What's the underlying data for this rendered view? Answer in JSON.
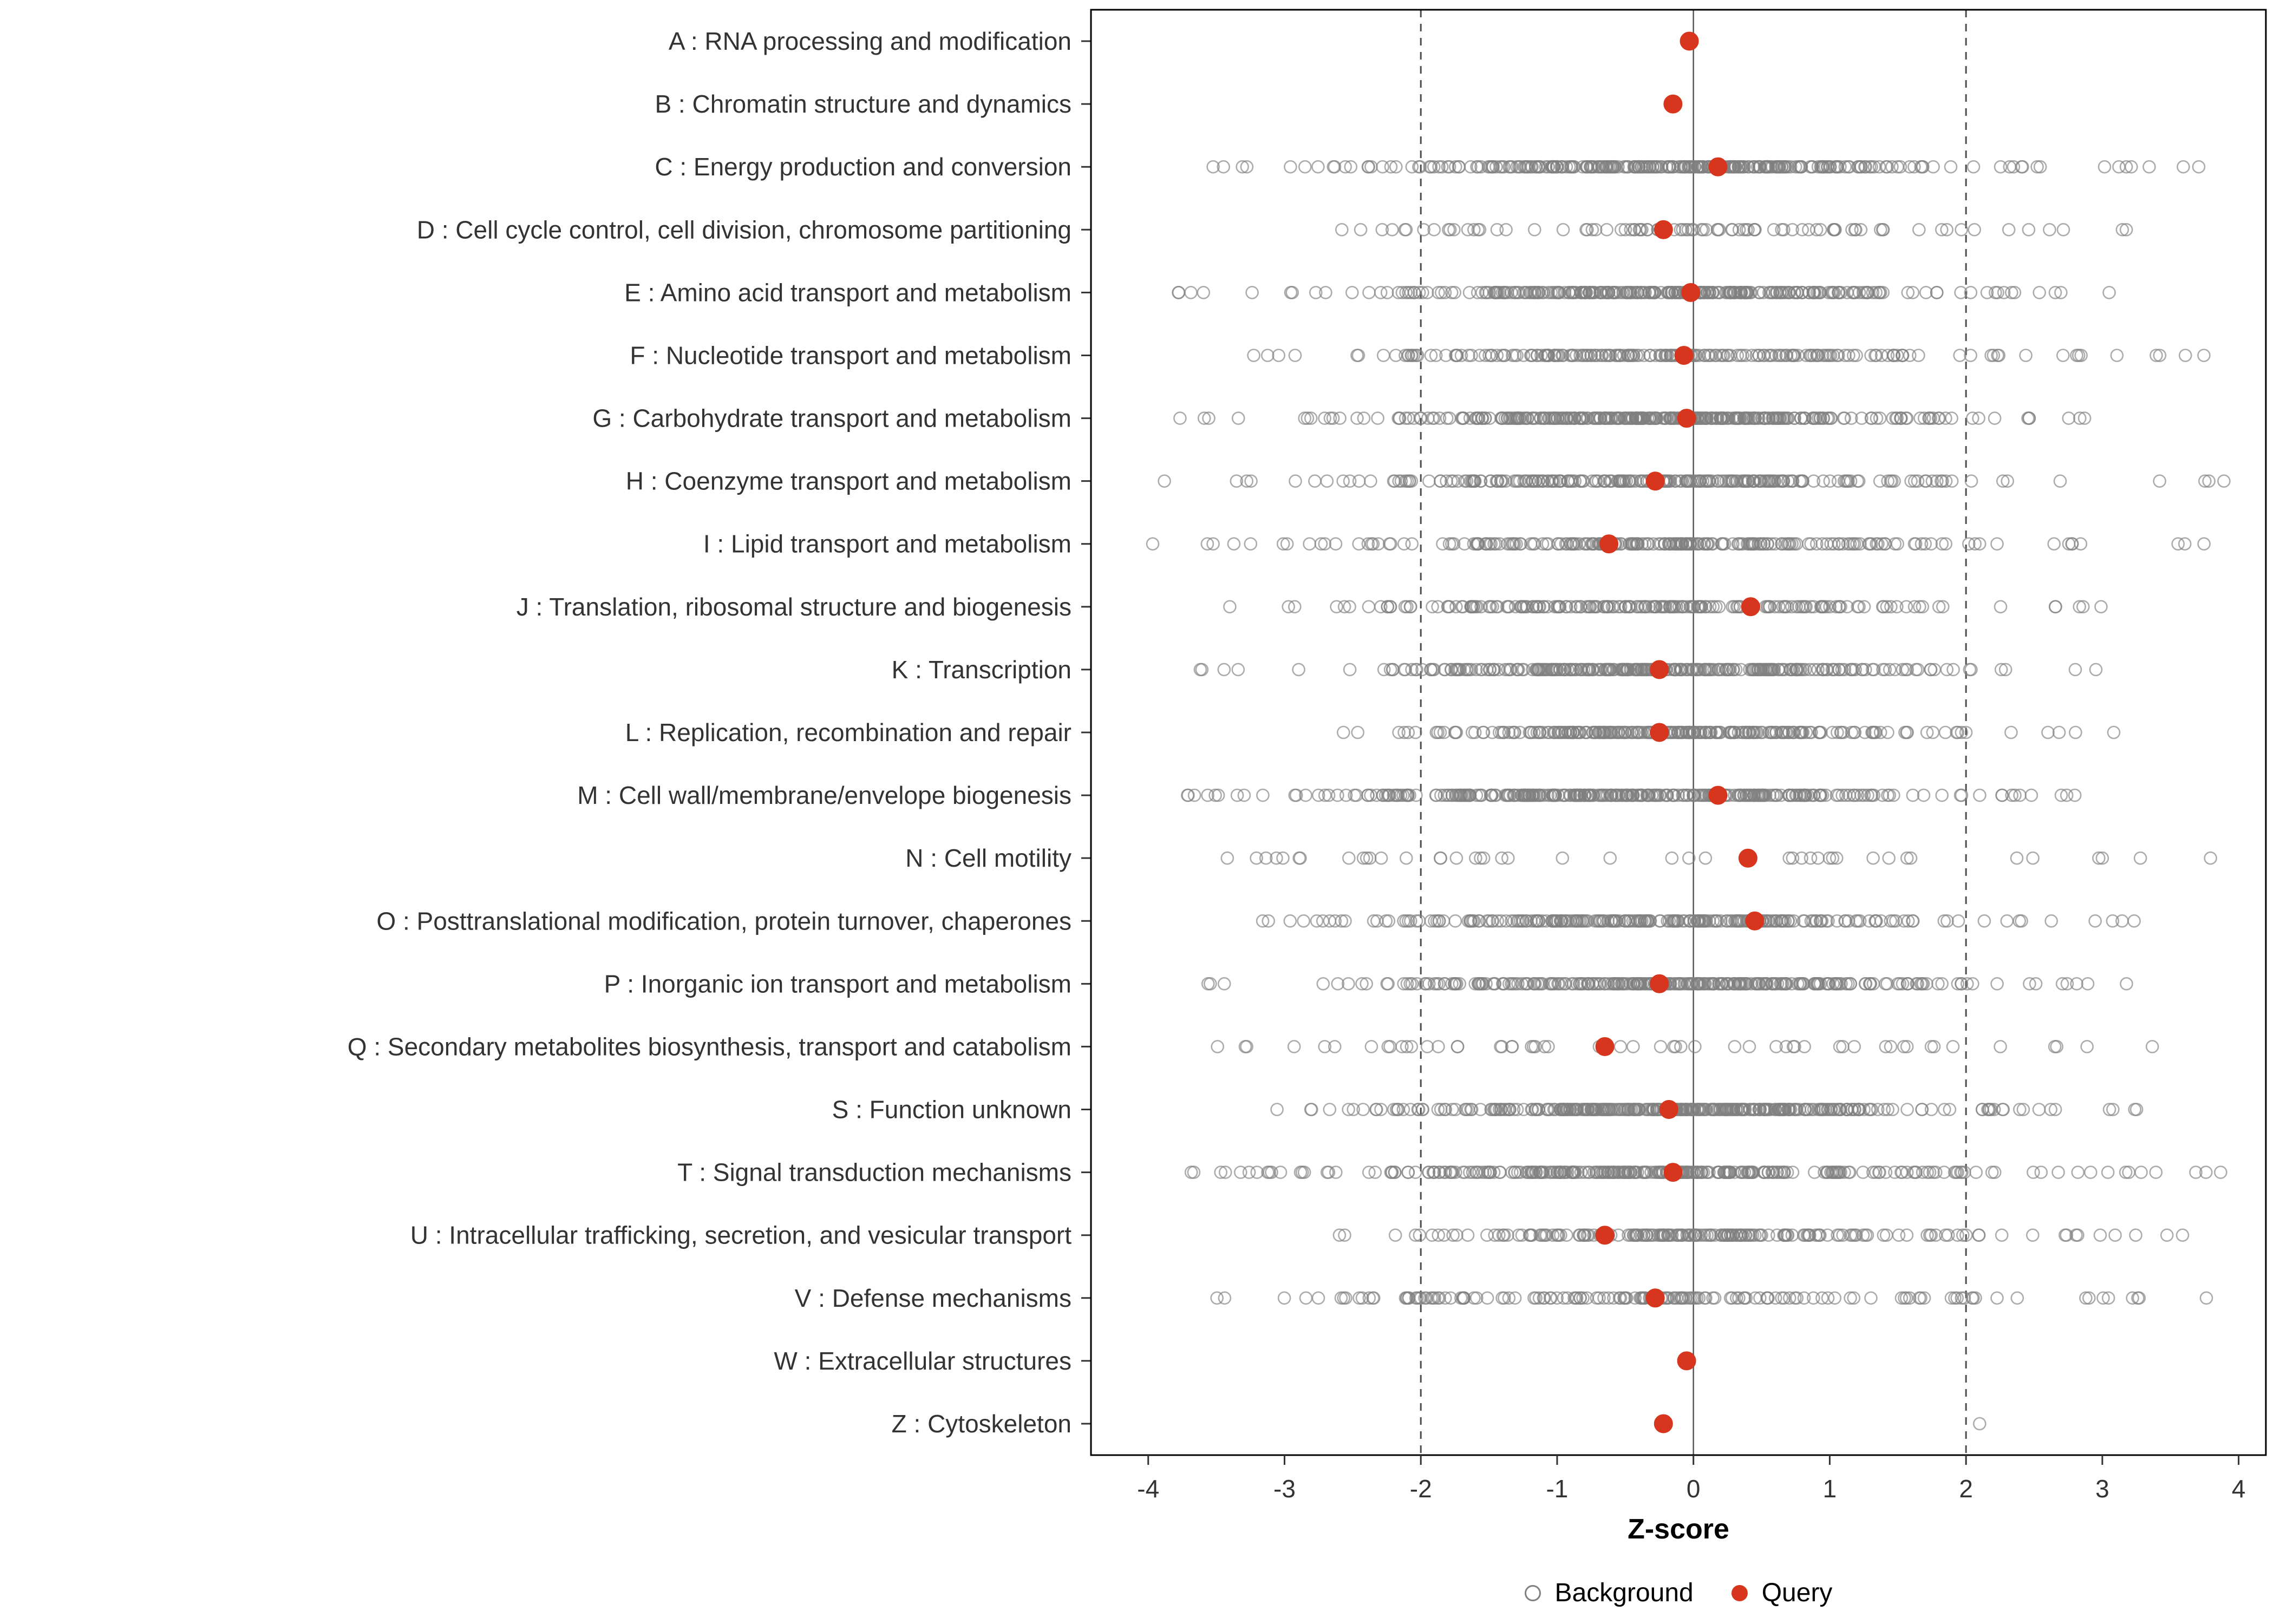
{
  "chart_data": {
    "type": "scatter",
    "title": "",
    "xlabel": "Z-score",
    "ylabel": "",
    "xlim": [
      -4.42,
      4.2
    ],
    "x_ticks": [
      -4,
      -3,
      -2,
      -1,
      0,
      1,
      2,
      3,
      4
    ],
    "reference_lines": {
      "solid": [
        0
      ],
      "dashed": [
        -2,
        2
      ]
    },
    "grid": false,
    "legend_position": "bottom",
    "legend": [
      {
        "label": "Background",
        "marker": "open-circle",
        "color": "#808080"
      },
      {
        "label": "Query",
        "marker": "filled-circle",
        "color": "#D7351D"
      }
    ],
    "colors": {
      "background_stroke": "#808080",
      "query_fill": "#D7351D",
      "panel_border": "#000000",
      "zero_line": "#5a5a5a",
      "dashed_line": "#4d4d4d",
      "axis_text": "#333333"
    },
    "categories": [
      {
        "label": "A : RNA processing and modification",
        "query_z": -0.03,
        "background": {
          "n": 0,
          "mu": 0.0,
          "sd": 1.0,
          "min": -4.0,
          "max": 4.0,
          "uniform_frac": 0.1
        }
      },
      {
        "label": "B : Chromatin structure and dynamics",
        "query_z": -0.15,
        "background": {
          "n": 0,
          "mu": 0.0,
          "sd": 1.0,
          "min": -4.0,
          "max": 4.0,
          "uniform_frac": 0.1
        }
      },
      {
        "label": "C : Energy production and conversion",
        "query_z": 0.18,
        "background": {
          "n": 320,
          "mu": -0.2,
          "sd": 1.0,
          "min": -3.9,
          "max": 3.9,
          "uniform_frac": 0.12
        }
      },
      {
        "label": "D : Cell cycle control, cell division, chromosome partitioning",
        "query_z": -0.22,
        "background": {
          "n": 90,
          "mu": 0.2,
          "sd": 1.2,
          "min": -2.6,
          "max": 3.2,
          "uniform_frac": 0.3
        }
      },
      {
        "label": "E : Amino acid transport and metabolism",
        "query_z": -0.02,
        "background": {
          "n": 320,
          "mu": -0.2,
          "sd": 1.0,
          "min": -4.0,
          "max": 3.3,
          "uniform_frac": 0.12
        }
      },
      {
        "label": "F : Nucleotide transport and metabolism",
        "query_z": -0.07,
        "background": {
          "n": 220,
          "mu": -0.2,
          "sd": 1.1,
          "min": -3.9,
          "max": 3.8,
          "uniform_frac": 0.12
        }
      },
      {
        "label": "G : Carbohydrate transport and metabolism",
        "query_z": -0.05,
        "background": {
          "n": 380,
          "mu": -0.3,
          "sd": 0.9,
          "min": -3.8,
          "max": 3.3,
          "uniform_frac": 0.1
        }
      },
      {
        "label": "H : Coenzyme transport and metabolism",
        "query_z": -0.28,
        "background": {
          "n": 260,
          "mu": -0.3,
          "sd": 1.1,
          "min": -4.0,
          "max": 3.9,
          "uniform_frac": 0.12
        }
      },
      {
        "label": "I : Lipid transport and metabolism",
        "query_z": -0.62,
        "background": {
          "n": 230,
          "mu": -0.2,
          "sd": 1.1,
          "min": -4.0,
          "max": 3.9,
          "uniform_frac": 0.15
        }
      },
      {
        "label": "J : Translation, ribosomal structure and biogenesis",
        "query_z": 0.42,
        "background": {
          "n": 210,
          "mu": -0.4,
          "sd": 1.0,
          "min": -3.6,
          "max": 3.1,
          "uniform_frac": 0.12
        }
      },
      {
        "label": "K : Transcription",
        "query_z": -0.25,
        "background": {
          "n": 300,
          "mu": -0.3,
          "sd": 1.0,
          "min": -3.8,
          "max": 3.1,
          "uniform_frac": 0.12
        }
      },
      {
        "label": "L : Replication, recombination and repair",
        "query_z": -0.25,
        "background": {
          "n": 260,
          "mu": -0.2,
          "sd": 0.9,
          "min": -2.6,
          "max": 3.1,
          "uniform_frac": 0.12
        }
      },
      {
        "label": "M : Cell wall/membrane/envelope biogenesis",
        "query_z": 0.18,
        "background": {
          "n": 360,
          "mu": -0.4,
          "sd": 1.0,
          "min": -4.0,
          "max": 3.1,
          "uniform_frac": 0.1
        }
      },
      {
        "label": "N : Cell motility",
        "query_z": 0.4,
        "background": {
          "n": 45,
          "mu": 0.0,
          "sd": 1.6,
          "min": -3.6,
          "max": 3.9,
          "uniform_frac": 0.8
        }
      },
      {
        "label": "O : Posttranslational modification, protein turnover, chaperones",
        "query_z": 0.45,
        "background": {
          "n": 260,
          "mu": -0.3,
          "sd": 1.0,
          "min": -3.9,
          "max": 3.6,
          "uniform_frac": 0.12
        }
      },
      {
        "label": "P : Inorganic ion transport and metabolism",
        "query_z": -0.25,
        "background": {
          "n": 300,
          "mu": -0.2,
          "sd": 1.1,
          "min": -3.6,
          "max": 3.7,
          "uniform_frac": 0.12
        }
      },
      {
        "label": "Q : Secondary metabolites biosynthesis, transport and catabolism",
        "query_z": -0.65,
        "background": {
          "n": 55,
          "mu": -0.2,
          "sd": 1.4,
          "min": -3.6,
          "max": 3.4,
          "uniform_frac": 0.6
        }
      },
      {
        "label": "S : Function unknown",
        "query_z": -0.18,
        "background": {
          "n": 380,
          "mu": -0.1,
          "sd": 1.0,
          "min": -3.8,
          "max": 3.6,
          "uniform_frac": 0.1
        }
      },
      {
        "label": "T : Signal transduction mechanisms",
        "query_z": -0.15,
        "background": {
          "n": 320,
          "mu": -0.3,
          "sd": 1.1,
          "min": -3.8,
          "max": 3.9,
          "uniform_frac": 0.12
        }
      },
      {
        "label": "U : Intracellular trafficking, secretion, and vesicular transport",
        "query_z": -0.65,
        "background": {
          "n": 200,
          "mu": 0.0,
          "sd": 1.0,
          "min": -2.7,
          "max": 3.6,
          "uniform_frac": 0.12
        }
      },
      {
        "label": "V : Defense mechanisms",
        "query_z": -0.28,
        "background": {
          "n": 160,
          "mu": -0.4,
          "sd": 1.2,
          "min": -3.5,
          "max": 3.8,
          "uniform_frac": 0.2
        }
      },
      {
        "label": "W : Extracellular structures",
        "query_z": -0.05,
        "background": {
          "n": 0,
          "mu": 0.0,
          "sd": 1.0,
          "min": -4.0,
          "max": 4.0,
          "uniform_frac": 0.1
        }
      },
      {
        "label": "Z : Cytoskeleton",
        "query_z": -0.22,
        "background": {
          "points": [
            2.1
          ]
        }
      }
    ]
  }
}
